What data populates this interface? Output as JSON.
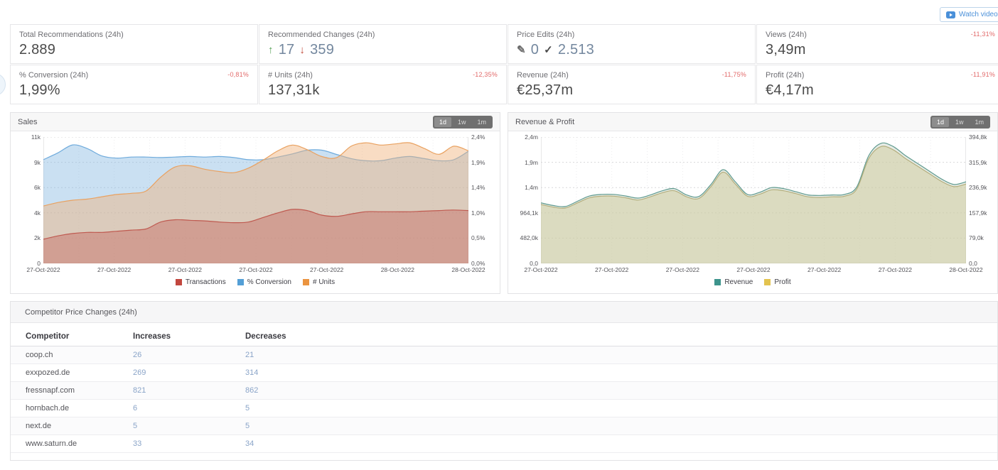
{
  "header": {
    "watch_tutorial_label": "Watch video tutorial",
    "accent_color": "#4a90d9"
  },
  "kpis": [
    {
      "title": "Total Recommendations (24h)",
      "badge": "",
      "value_parts": [
        {
          "type": "text",
          "text": "2.889",
          "color": "#4a4a4a"
        }
      ]
    },
    {
      "title": "Recommended Changes (24h)",
      "badge": "",
      "value_parts": [
        {
          "type": "icon",
          "icon": "arrow-up-icon",
          "text": "↑",
          "color": "#55a055"
        },
        {
          "type": "text",
          "text": "17",
          "color": "#73879e"
        },
        {
          "type": "icon",
          "icon": "arrow-down-icon",
          "text": "↓",
          "color": "#c24a3a"
        },
        {
          "type": "text",
          "text": "359",
          "color": "#73879e"
        }
      ]
    },
    {
      "title": "Price Edits (24h)",
      "badge": "",
      "value_parts": [
        {
          "type": "icon",
          "icon": "pencil-icon",
          "text": "✎",
          "color": "#6b6b6b"
        },
        {
          "type": "text",
          "text": "0",
          "color": "#73879e"
        },
        {
          "type": "icon",
          "icon": "check-icon",
          "text": "✓",
          "color": "#4a4a4a"
        },
        {
          "type": "text",
          "text": "2.513",
          "color": "#73879e"
        }
      ]
    },
    {
      "title": "Views (24h)",
      "badge": "-11,31%",
      "value_parts": [
        {
          "type": "text",
          "text": "3,49m",
          "color": "#4a4a4a"
        }
      ]
    },
    {
      "title": "% Conversion (24h)",
      "badge": "-0,81%",
      "value_parts": [
        {
          "type": "text",
          "text": "1,99%",
          "color": "#4a4a4a"
        }
      ]
    },
    {
      "title": "# Units (24h)",
      "badge": "-12,35%",
      "value_parts": [
        {
          "type": "text",
          "text": "137,31k",
          "color": "#4a4a4a"
        }
      ]
    },
    {
      "title": "Revenue (24h)",
      "badge": "-11,75%",
      "value_parts": [
        {
          "type": "text",
          "text": "€25,37m",
          "color": "#4a4a4a"
        }
      ]
    },
    {
      "title": "Profit (24h)",
      "badge": "-11,91%",
      "value_parts": [
        {
          "type": "text",
          "text": "€4,17m",
          "color": "#4a4a4a"
        }
      ]
    }
  ],
  "chart_data": [
    {
      "type": "area",
      "title": "Sales",
      "range_buttons": [
        "1d",
        "1w",
        "1m"
      ],
      "active_range": "1d",
      "grid": true,
      "legend_position": "bottom",
      "x_labels": [
        "27-Oct-2022",
        "27-Oct-2022",
        "27-Oct-2022",
        "27-Oct-2022",
        "27-Oct-2022",
        "28-Oct-2022",
        "28-Oct-2022"
      ],
      "y_axis_left": {
        "labels": [
          "11k",
          "9k",
          "6k",
          "4k",
          "2k",
          "0"
        ],
        "max": 11,
        "unit": "k units/transactions"
      },
      "y_axis_right": {
        "labels": [
          "2,4%",
          "1,9%",
          "1,4%",
          "1,0%",
          "0,5%",
          "0,0%"
        ],
        "max": 2.4,
        "unit": "% conversion"
      },
      "series": [
        {
          "name": "% Conversion",
          "axis": "right",
          "ymax": 2.4,
          "stroke": "#6fabdc",
          "fill": "rgba(128,180,225,0.42)",
          "values": [
            1.97,
            2.1,
            2.25,
            2.18,
            2.04,
            2.0,
            2.02,
            2.02,
            2.01,
            2.02,
            2.03,
            2.02,
            2.03,
            2.01,
            1.97,
            1.97,
            2.02,
            2.08,
            2.15,
            2.15,
            2.07,
            1.99,
            1.95,
            1.95,
            2.0,
            2.03,
            1.99,
            1.95,
            1.97,
            2.13
          ]
        },
        {
          "name": "# Units",
          "axis": "left",
          "ymax": 11,
          "stroke": "#e9a160",
          "fill": "rgba(240,178,122,0.45)",
          "values": [
            5.0,
            5.3,
            5.5,
            5.6,
            5.8,
            6.0,
            6.1,
            6.3,
            7.5,
            8.4,
            8.5,
            8.2,
            8.0,
            7.9,
            8.3,
            9.0,
            9.8,
            10.3,
            9.9,
            9.3,
            9.2,
            10.2,
            10.5,
            10.3,
            10.4,
            10.5,
            10.0,
            9.5,
            10.2,
            9.8
          ]
        },
        {
          "name": "Transactions",
          "axis": "left",
          "ymax": 11,
          "stroke": "#bf5a50",
          "fill": "rgba(198,106,97,0.45)",
          "values": [
            2.1,
            2.4,
            2.6,
            2.7,
            2.7,
            2.8,
            2.9,
            3.0,
            3.6,
            3.8,
            3.75,
            3.7,
            3.6,
            3.55,
            3.6,
            4.0,
            4.4,
            4.7,
            4.6,
            4.2,
            4.1,
            4.3,
            4.5,
            4.5,
            4.5,
            4.5,
            4.55,
            4.6,
            4.65,
            4.6
          ]
        }
      ],
      "legend": [
        {
          "label": "Transactions",
          "color": "#c2473f"
        },
        {
          "label": "% Conversion",
          "color": "#539fd6"
        },
        {
          "label": "# Units",
          "color": "#eb9440"
        }
      ]
    },
    {
      "type": "area",
      "title": "Revenue & Profit",
      "range_buttons": [
        "1d",
        "1w",
        "1m"
      ],
      "active_range": "1d",
      "grid": true,
      "legend_position": "bottom",
      "x_labels": [
        "27-Oct-2022",
        "27-Oct-2022",
        "27-Oct-2022",
        "27-Oct-2022",
        "27-Oct-2022",
        "27-Oct-2022",
        "28-Oct-2022"
      ],
      "y_axis_left": {
        "labels": [
          "2,4m",
          "1,9m",
          "1,4m",
          "964,1k",
          "482,0k",
          "0,0"
        ],
        "max": 2.4,
        "unit": "revenue EUR"
      },
      "y_axis_right": {
        "labels": [
          "394,8k",
          "315,9k",
          "236,9k",
          "157,9k",
          "79,0k",
          "0,0"
        ],
        "max": 394.8,
        "unit": "profit EUR"
      },
      "series": [
        {
          "name": "Revenue",
          "axis": "left",
          "ymax": 2.4,
          "stroke": "#5f9a8e",
          "fill": "rgba(141,166,141,0.22)",
          "values": [
            1.15,
            1.1,
            1.08,
            1.18,
            1.28,
            1.31,
            1.31,
            1.28,
            1.24,
            1.3,
            1.38,
            1.42,
            1.3,
            1.27,
            1.5,
            1.78,
            1.55,
            1.31,
            1.35,
            1.44,
            1.42,
            1.36,
            1.3,
            1.29,
            1.3,
            1.31,
            1.45,
            2.05,
            2.28,
            2.22,
            2.05,
            1.9,
            1.75,
            1.6,
            1.5,
            1.55
          ]
        },
        {
          "name": "Profit",
          "axis": "right",
          "ymax": 394.8,
          "stroke": "#b3ae7c",
          "fill": "rgba(212,209,166,0.60)",
          "values": [
            184,
            176,
            173,
            189,
            205,
            210,
            210,
            205,
            198,
            208,
            221,
            227,
            208,
            203,
            240,
            285,
            248,
            210,
            216,
            230,
            227,
            218,
            208,
            206,
            208,
            210,
            232,
            328,
            365,
            355,
            328,
            304,
            280,
            256,
            240,
            248
          ]
        }
      ],
      "legend": [
        {
          "label": "Revenue",
          "color": "#3d948c"
        },
        {
          "label": "Profit",
          "color": "#e3c34f"
        }
      ]
    }
  ],
  "competitor_table": {
    "title": "Competitor Price Changes (24h)",
    "columns": [
      "Competitor",
      "Increases",
      "Decreases"
    ],
    "rows": [
      {
        "competitor": "coop.ch",
        "increases": "26",
        "decreases": "21"
      },
      {
        "competitor": "exxpozed.de",
        "increases": "269",
        "decreases": "314"
      },
      {
        "competitor": "fressnapf.com",
        "increases": "821",
        "decreases": "862"
      },
      {
        "competitor": "hornbach.de",
        "increases": "6",
        "decreases": "5"
      },
      {
        "competitor": "next.de",
        "increases": "5",
        "decreases": "5"
      },
      {
        "competitor": "www.saturn.de",
        "increases": "33",
        "decreases": "34"
      }
    ]
  }
}
